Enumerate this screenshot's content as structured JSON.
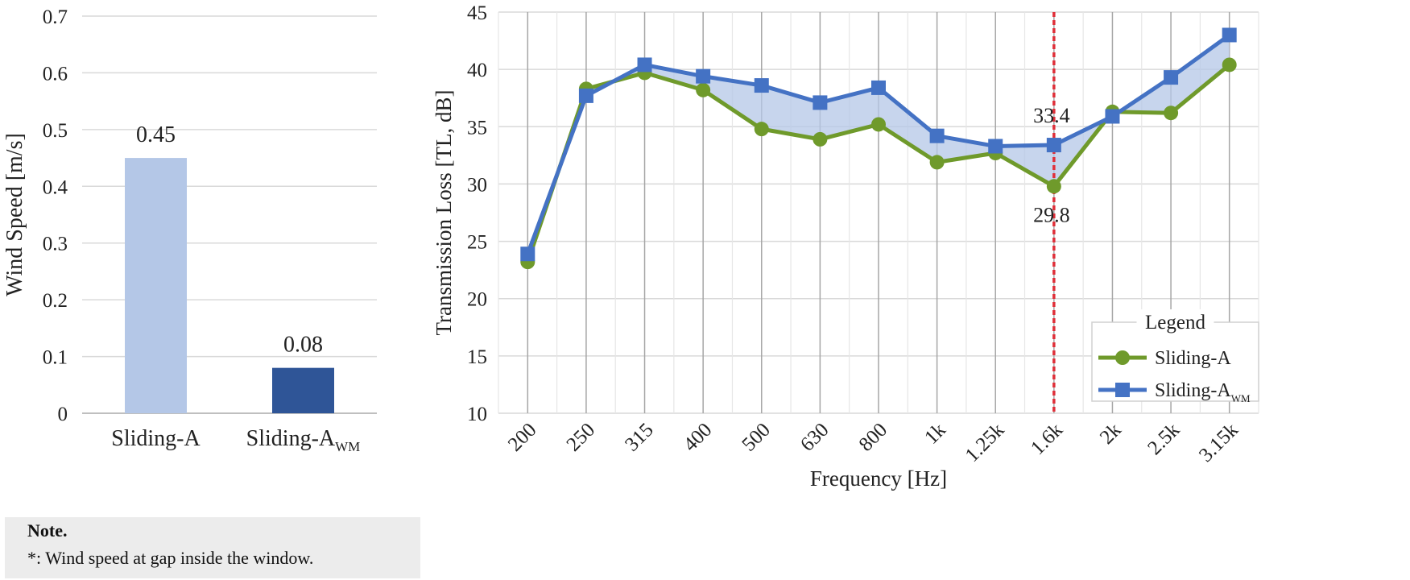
{
  "chart_data": [
    {
      "type": "bar",
      "categories": [
        "Sliding-A",
        "Sliding-A_WM"
      ],
      "category_labels": [
        {
          "main": "Sliding-A",
          "sub": ""
        },
        {
          "main": "Sliding-A",
          "sub": "WM"
        }
      ],
      "values": [
        0.45,
        0.08
      ],
      "value_labels": [
        "0.45",
        "0.08"
      ],
      "colors": [
        "#b4c7e7",
        "#2f5597"
      ],
      "ylabel": "Wind Speed [m/s]",
      "ylim": [
        0,
        0.7
      ],
      "yticks": [
        0,
        0.1,
        0.2,
        0.3,
        0.4,
        0.5,
        0.6,
        0.7
      ],
      "ytick_labels": [
        "0",
        "0.1",
        "0.2",
        "0.3",
        "0.4",
        "0.5",
        "0.6",
        "0.7"
      ],
      "grid": true
    },
    {
      "type": "line",
      "x": [
        "200",
        "250",
        "315",
        "400",
        "500",
        "630",
        "800",
        "1k",
        "1.25k",
        "1.6k",
        "2k",
        "2.5k",
        "3.15k"
      ],
      "series": [
        {
          "name": "Sliding-A",
          "name_sub": "",
          "color": "#6f9a2b",
          "marker": "circle",
          "values": [
            23.2,
            38.3,
            39.7,
            38.2,
            34.8,
            33.9,
            35.2,
            31.9,
            32.7,
            29.8,
            36.3,
            36.2,
            40.4
          ]
        },
        {
          "name": "Sliding-A",
          "name_sub": "WM",
          "color": "#4472c4",
          "marker": "square",
          "values": [
            23.9,
            37.7,
            40.4,
            39.4,
            38.6,
            37.1,
            38.4,
            34.2,
            33.3,
            33.4,
            35.9,
            39.3,
            43.0
          ]
        }
      ],
      "fill_between_color": "#b4c7e7",
      "xlabel": "Frequency [Hz]",
      "ylabel": "Transmission Loss [TL, dB]",
      "ylim": [
        10,
        45
      ],
      "yticks": [
        10,
        15,
        20,
        25,
        30,
        35,
        40,
        45
      ],
      "ytick_labels": [
        "10",
        "15",
        "20",
        "25",
        "30",
        "35",
        "40",
        "45"
      ],
      "reference_line": {
        "x": "1.6k",
        "color": "#e0303a",
        "style": "dashed"
      },
      "annotations": [
        {
          "x": "1.6k",
          "text": "33.4"
        },
        {
          "x": "1.6k",
          "text": "29.8"
        }
      ],
      "legend": {
        "title": "Legend",
        "position": "bottom-right"
      },
      "grid": true
    }
  ],
  "note": {
    "title": "Note.",
    "text": "*: Wind speed at gap inside the window."
  },
  "colors": {
    "grid": "#d9d9d9",
    "vgrid": "#a6a6a6",
    "note_bg": "#ececec"
  }
}
